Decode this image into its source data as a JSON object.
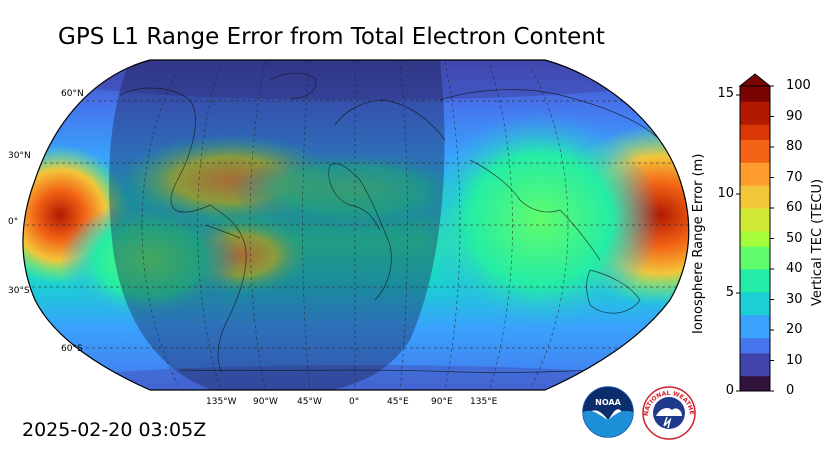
{
  "title": "GPS L1 Range Error from Total Electron Content",
  "timestamp": "2025-02-20 03:05Z",
  "map": {
    "projection": "Robinson",
    "lat_labels": [
      "60°N",
      "30°N",
      "0°",
      "30°S",
      "60°S"
    ],
    "lon_labels": [
      "135°W",
      "90°W",
      "45°W",
      "0°",
      "45°E",
      "90°E",
      "135°E"
    ],
    "night_shading": true
  },
  "colorbar": {
    "left_label": "Ionosphere Range Error (m)",
    "right_label": "Vertical TEC (TECU)",
    "left_ticks": [
      "0",
      "5",
      "10",
      "15"
    ],
    "right_ticks": [
      "0",
      "10",
      "20",
      "30",
      "40",
      "50",
      "60",
      "70",
      "80",
      "90",
      "100"
    ],
    "extend": "max",
    "colors": [
      "#30123b",
      "#4145ab",
      "#4675ed",
      "#39a2fc",
      "#1bcfd4",
      "#24eca6",
      "#61fc6c",
      "#a4fc3b",
      "#d1e834",
      "#f3c63a",
      "#fe9b2d",
      "#f36315",
      "#d93806",
      "#b11901",
      "#7a0402"
    ]
  },
  "logos": {
    "noaa_text": "NOAA",
    "nws_text": "NATIONAL WEATHER SERVICE"
  }
}
